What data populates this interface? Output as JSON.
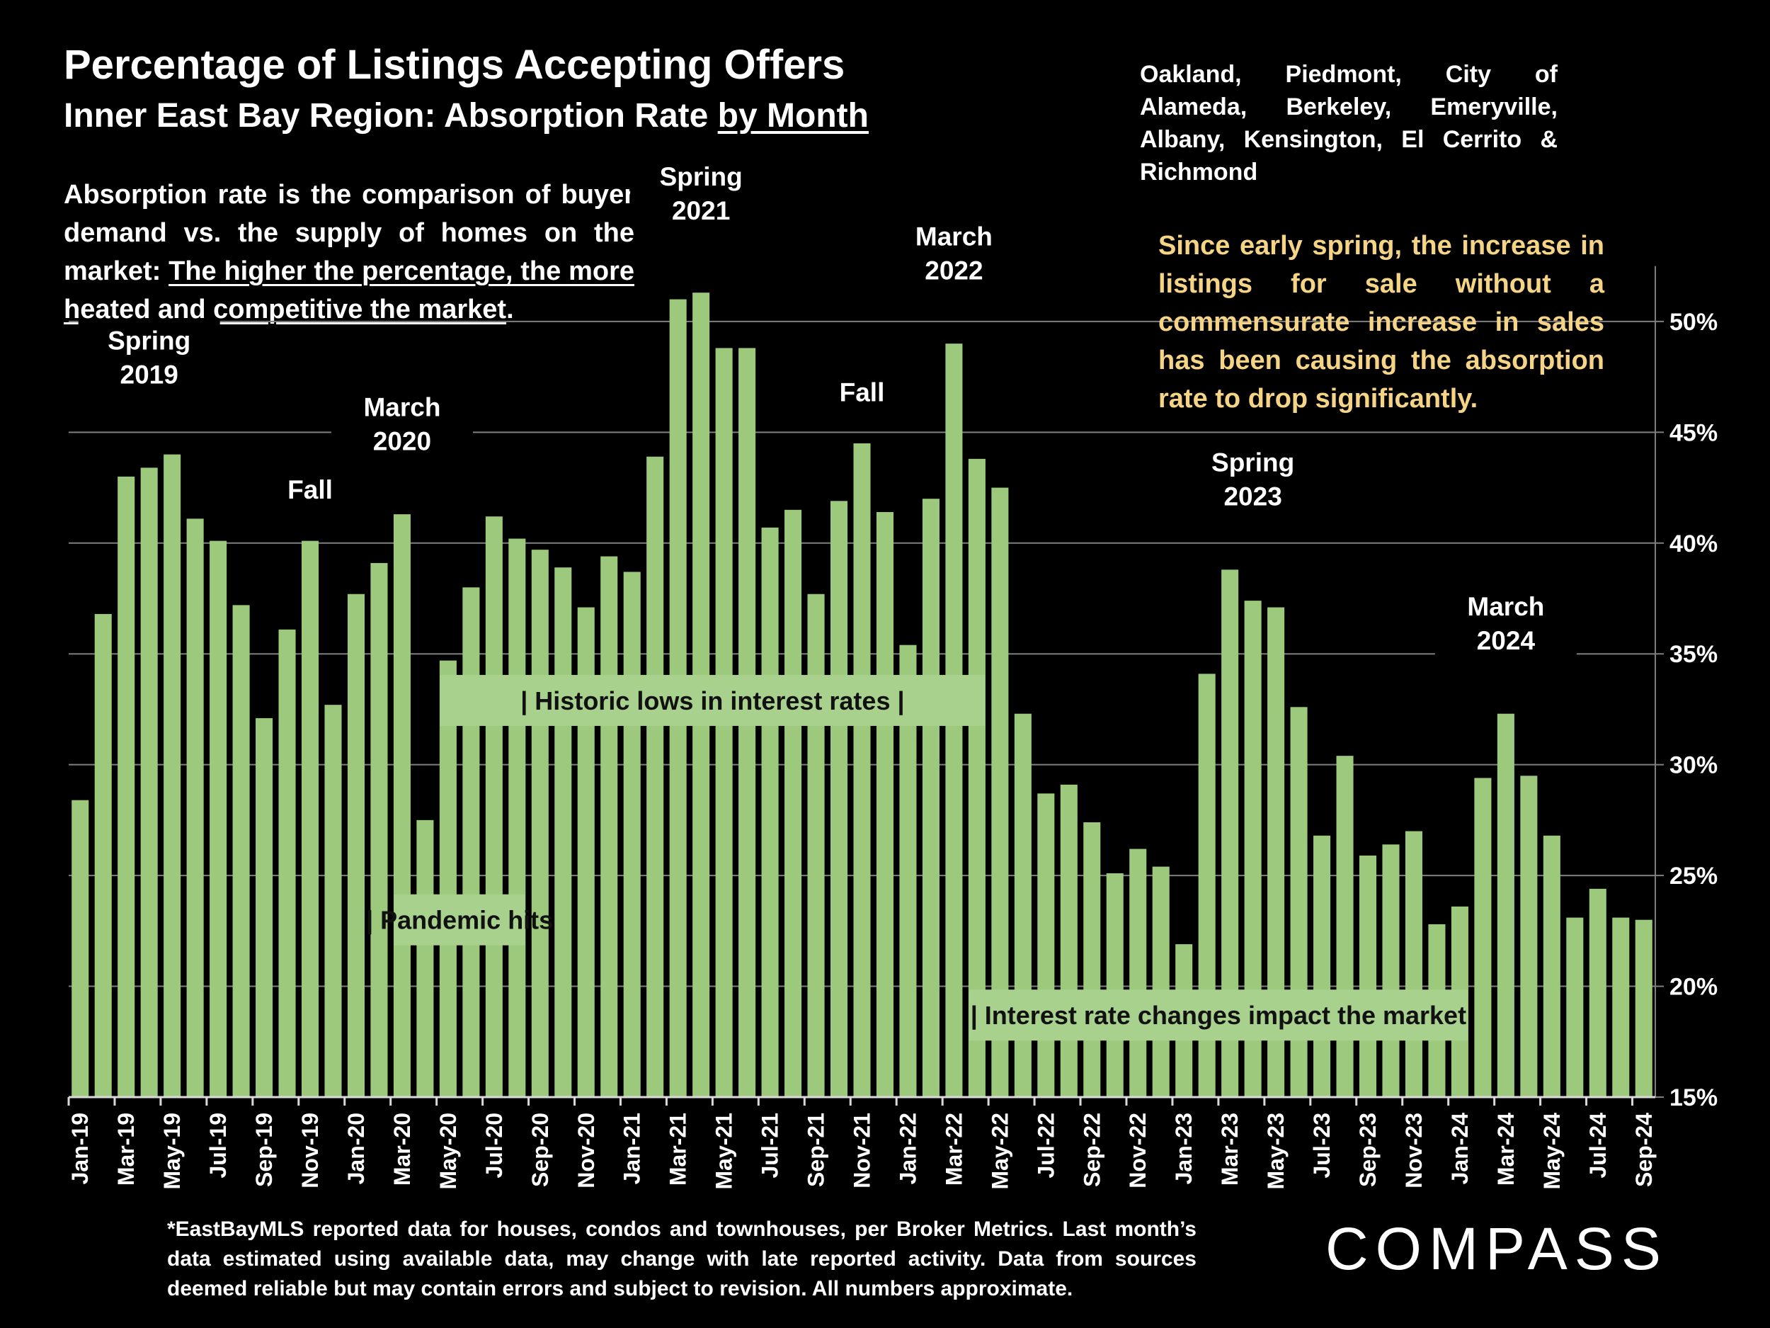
{
  "title": "Percentage of Listings Accepting Offers",
  "subtitle": {
    "prefix": "Inner East Bay Region:  Absorption Rate ",
    "underlined": "by Month"
  },
  "regions": "Oakland, Piedmont, City of Alameda, Berkeley, Emeryville, Albany, Kensington, El Cerrito & Richmond",
  "explanation": {
    "prefix": "Absorption rate is the comparison of buyer demand vs. the supply of homes on the market: ",
    "underlined": "The higher the percentage, the more heated and competitive the market",
    "suffix": "."
  },
  "note": "Since early spring, the increase in listings for sale without a commensurate increase in sales has been causing the absorption rate to drop significantly.",
  "footnote": "*EastBayMLS reported data for houses, condos and townhouses, per Broker Metrics. Last month’s data estimated using available data, may change with late reported activity. Data from sources deemed reliable but may contain errors and subject to revision. All numbers approximate.",
  "logo": "COMPASS",
  "colors": {
    "background": "#000000",
    "bar": "#9dc97c",
    "text": "#ffffff",
    "note_text": "#f5d486",
    "callout_box": "#a9d18e",
    "callout_text": "#111111",
    "grid": "#7f7f7f"
  },
  "chart_data": {
    "type": "bar",
    "title": "Percentage of Listings Accepting Offers",
    "y_axis_position": "right",
    "ylim": [
      15,
      53
    ],
    "yticks": [
      "15%",
      "20%",
      "25%",
      "30%",
      "35%",
      "40%",
      "45%",
      "50%"
    ],
    "ytick_values": [
      15,
      20,
      25,
      30,
      35,
      40,
      45,
      50
    ],
    "grid": true,
    "xtick_labels": [
      "Jan-19",
      "Mar-19",
      "May-19",
      "Jul-19",
      "Sep-19",
      "Nov-19",
      "Jan-20",
      "Mar-20",
      "May-20",
      "Jul-20",
      "Sep-20",
      "Nov-20",
      "Jan-21",
      "Mar-21",
      "May-21",
      "Jul-21",
      "Sep-21",
      "Nov-21",
      "Jan-22",
      "Mar-22",
      "May-22",
      "Jul-22",
      "Sep-22",
      "Nov-22",
      "Jan-23",
      "Mar-23",
      "May-23",
      "Jul-23",
      "Sep-23",
      "Nov-23",
      "Jan-24",
      "Mar-24",
      "May-24",
      "Jul-24",
      "Sep-24"
    ],
    "categories": [
      "Jan-19",
      "Feb-19",
      "Mar-19",
      "Apr-19",
      "May-19",
      "Jun-19",
      "Jul-19",
      "Aug-19",
      "Sep-19",
      "Oct-19",
      "Nov-19",
      "Dec-19",
      "Jan-20",
      "Feb-20",
      "Mar-20",
      "Apr-20",
      "May-20",
      "Jun-20",
      "Jul-20",
      "Aug-20",
      "Sep-20",
      "Oct-20",
      "Nov-20",
      "Dec-20",
      "Jan-21",
      "Feb-21",
      "Mar-21",
      "Apr-21",
      "May-21",
      "Jun-21",
      "Jul-21",
      "Aug-21",
      "Sep-21",
      "Oct-21",
      "Nov-21",
      "Dec-21",
      "Jan-22",
      "Feb-22",
      "Mar-22",
      "Apr-22",
      "May-22",
      "Jun-22",
      "Jul-22",
      "Aug-22",
      "Sep-22",
      "Oct-22",
      "Nov-22",
      "Dec-22",
      "Jan-23",
      "Feb-23",
      "Mar-23",
      "Apr-23",
      "May-23",
      "Jun-23",
      "Jul-23",
      "Aug-23",
      "Sep-23",
      "Oct-23",
      "Nov-23",
      "Dec-23",
      "Jan-24",
      "Feb-24",
      "Mar-24",
      "Apr-24",
      "May-24",
      "Jun-24",
      "Jul-24",
      "Aug-24",
      "Sep-24"
    ],
    "values": [
      28.4,
      36.8,
      43.0,
      43.4,
      44.0,
      41.1,
      40.1,
      37.2,
      32.1,
      36.1,
      40.1,
      32.7,
      37.7,
      39.1,
      41.3,
      27.5,
      34.7,
      38.0,
      41.2,
      40.2,
      39.7,
      38.9,
      37.1,
      39.4,
      38.7,
      43.9,
      51.0,
      51.3,
      48.8,
      48.8,
      40.7,
      41.5,
      37.7,
      41.9,
      44.5,
      41.4,
      35.4,
      42.0,
      49.0,
      43.8,
      42.5,
      32.3,
      28.7,
      29.1,
      27.4,
      25.1,
      26.2,
      25.4,
      21.9,
      34.1,
      38.8,
      37.4,
      37.1,
      32.6,
      26.8,
      30.4,
      25.9,
      26.4,
      27.0,
      22.8,
      23.6,
      29.4,
      32.3,
      29.5,
      26.8,
      23.1,
      24.4,
      23.1,
      23.0
    ],
    "annotations": [
      {
        "lines": [
          "Spring",
          "2019"
        ],
        "category": "Apr-19",
        "value": 47.2
      },
      {
        "lines": [
          "Fall"
        ],
        "category": "Nov-19",
        "value": 42.0
      },
      {
        "lines": [
          "March",
          "2020"
        ],
        "category": "Mar-20",
        "value": 44.2
      },
      {
        "lines": [
          "Spring",
          "2021"
        ],
        "category": "Apr-21",
        "value": 54.6
      },
      {
        "lines": [
          "March",
          "2022"
        ],
        "category": "Mar-22",
        "value": 51.9
      },
      {
        "lines": [
          "Fall"
        ],
        "category": "Nov-21",
        "value": 46.4
      },
      {
        "lines": [
          "Spring",
          "2023"
        ],
        "category": "Apr-23",
        "value": 41.7
      },
      {
        "lines": [
          "March",
          "2024"
        ],
        "category": "Mar-24",
        "value": 35.2
      }
    ],
    "callouts": [
      {
        "text": "| Pandemic hits",
        "from": "Mar-20",
        "to": "Aug-20",
        "value": 23.0
      },
      {
        "text": "|       Historic lows in interest rates        |",
        "from": "May-20",
        "to": "Apr-22",
        "value": 32.9
      },
      {
        "text": "| Interest rate changes impact the market",
        "from": "Apr-22",
        "to": "Jan-24",
        "value": 18.7
      }
    ]
  }
}
